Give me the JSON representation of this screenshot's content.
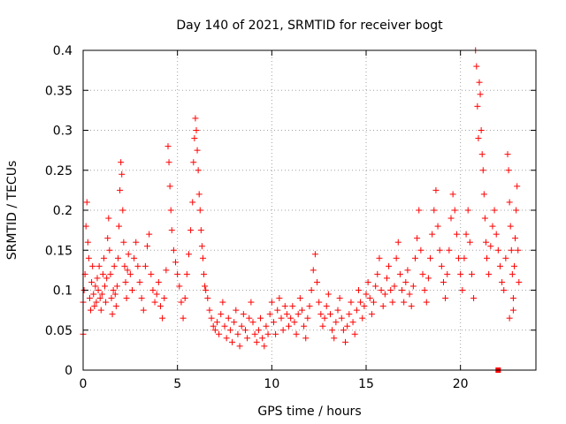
{
  "chart_data": {
    "type": "scatter",
    "title": "Day 140 of 2021, SRMTID for receiver bogt",
    "xlabel": "GPS time / hours",
    "ylabel": "SRMTID / TECUs",
    "xlim": [
      0,
      24
    ],
    "ylim": [
      0,
      0.4
    ],
    "xticks": [
      0,
      5,
      10,
      15,
      20
    ],
    "xtick_labels": [
      "0",
      "5",
      "10",
      "15",
      "20"
    ],
    "yticks": [
      0,
      0.05,
      0.1,
      0.15,
      0.2,
      0.25,
      0.3,
      0.35,
      0.4
    ],
    "ytick_labels": [
      "0",
      "0.05",
      "0.1",
      "0.15",
      "0.2",
      "0.25",
      "0.3",
      "0.35",
      "0.4"
    ],
    "grid": true,
    "series": [
      {
        "name": "SRMTID",
        "marker": "plus",
        "color": "#ff0000",
        "points": [
          [
            0.0,
            0.085
          ],
          [
            0.0,
            0.045
          ],
          [
            0.05,
            0.1
          ],
          [
            0.1,
            0.12
          ],
          [
            0.15,
            0.18
          ],
          [
            0.2,
            0.21
          ],
          [
            0.25,
            0.16
          ],
          [
            0.3,
            0.14
          ],
          [
            0.35,
            0.09
          ],
          [
            0.4,
            0.075
          ],
          [
            0.45,
            0.11
          ],
          [
            0.5,
            0.13
          ],
          [
            0.55,
            0.095
          ],
          [
            0.6,
            0.08
          ],
          [
            0.65,
            0.105
          ],
          [
            0.7,
            0.085
          ],
          [
            0.75,
            0.115
          ],
          [
            0.8,
            0.1
          ],
          [
            0.85,
            0.13
          ],
          [
            0.9,
            0.09
          ],
          [
            0.95,
            0.075
          ],
          [
            1.0,
            0.095
          ],
          [
            1.05,
            0.12
          ],
          [
            1.1,
            0.14
          ],
          [
            1.15,
            0.105
          ],
          [
            1.2,
            0.085
          ],
          [
            1.25,
            0.115
          ],
          [
            1.3,
            0.165
          ],
          [
            1.35,
            0.19
          ],
          [
            1.4,
            0.15
          ],
          [
            1.45,
            0.12
          ],
          [
            1.5,
            0.09
          ],
          [
            1.55,
            0.07
          ],
          [
            1.6,
            0.1
          ],
          [
            1.65,
            0.13
          ],
          [
            1.7,
            0.095
          ],
          [
            1.75,
            0.08
          ],
          [
            1.8,
            0.105
          ],
          [
            1.85,
            0.14
          ],
          [
            1.9,
            0.18
          ],
          [
            1.95,
            0.225
          ],
          [
            2.0,
            0.26
          ],
          [
            2.05,
            0.245
          ],
          [
            2.1,
            0.2
          ],
          [
            2.15,
            0.16
          ],
          [
            2.2,
            0.13
          ],
          [
            2.25,
            0.11
          ],
          [
            2.3,
            0.09
          ],
          [
            2.35,
            0.125
          ],
          [
            2.4,
            0.145
          ],
          [
            2.5,
            0.12
          ],
          [
            2.6,
            0.1
          ],
          [
            2.7,
            0.14
          ],
          [
            2.8,
            0.16
          ],
          [
            2.9,
            0.13
          ],
          [
            3.0,
            0.11
          ],
          [
            3.1,
            0.09
          ],
          [
            3.2,
            0.075
          ],
          [
            3.3,
            0.13
          ],
          [
            3.4,
            0.155
          ],
          [
            3.5,
            0.17
          ],
          [
            3.6,
            0.12
          ],
          [
            3.7,
            0.1
          ],
          [
            3.8,
            0.085
          ],
          [
            3.9,
            0.095
          ],
          [
            4.0,
            0.11
          ],
          [
            4.1,
            0.08
          ],
          [
            4.2,
            0.065
          ],
          [
            4.3,
            0.09
          ],
          [
            4.4,
            0.125
          ],
          [
            4.5,
            0.28
          ],
          [
            4.55,
            0.26
          ],
          [
            4.6,
            0.23
          ],
          [
            4.65,
            0.2
          ],
          [
            4.7,
            0.175
          ],
          [
            4.8,
            0.15
          ],
          [
            4.9,
            0.135
          ],
          [
            5.0,
            0.12
          ],
          [
            5.1,
            0.105
          ],
          [
            5.2,
            0.085
          ],
          [
            5.3,
            0.065
          ],
          [
            5.4,
            0.09
          ],
          [
            5.5,
            0.12
          ],
          [
            5.6,
            0.145
          ],
          [
            5.7,
            0.175
          ],
          [
            5.8,
            0.21
          ],
          [
            5.85,
            0.26
          ],
          [
            5.9,
            0.29
          ],
          [
            5.95,
            0.315
          ],
          [
            6.0,
            0.3
          ],
          [
            6.05,
            0.275
          ],
          [
            6.1,
            0.25
          ],
          [
            6.15,
            0.22
          ],
          [
            6.2,
            0.2
          ],
          [
            6.25,
            0.175
          ],
          [
            6.3,
            0.155
          ],
          [
            6.35,
            0.14
          ],
          [
            6.4,
            0.12
          ],
          [
            6.45,
            0.105
          ],
          [
            6.5,
            0.1
          ],
          [
            6.6,
            0.09
          ],
          [
            6.7,
            0.075
          ],
          [
            6.8,
            0.065
          ],
          [
            6.9,
            0.055
          ],
          [
            7.0,
            0.05
          ],
          [
            7.1,
            0.06
          ],
          [
            7.2,
            0.045
          ],
          [
            7.3,
            0.07
          ],
          [
            7.4,
            0.085
          ],
          [
            7.5,
            0.055
          ],
          [
            7.6,
            0.04
          ],
          [
            7.7,
            0.065
          ],
          [
            7.8,
            0.05
          ],
          [
            7.9,
            0.035
          ],
          [
            8.0,
            0.06
          ],
          [
            8.1,
            0.075
          ],
          [
            8.2,
            0.045
          ],
          [
            8.3,
            0.03
          ],
          [
            8.4,
            0.055
          ],
          [
            8.5,
            0.07
          ],
          [
            8.6,
            0.05
          ],
          [
            8.7,
            0.04
          ],
          [
            8.8,
            0.065
          ],
          [
            8.9,
            0.085
          ],
          [
            9.0,
            0.06
          ],
          [
            9.1,
            0.045
          ],
          [
            9.2,
            0.035
          ],
          [
            9.3,
            0.05
          ],
          [
            9.4,
            0.065
          ],
          [
            9.5,
            0.04
          ],
          [
            9.6,
            0.03
          ],
          [
            9.7,
            0.055
          ],
          [
            9.8,
            0.045
          ],
          [
            9.9,
            0.07
          ],
          [
            10.0,
            0.085
          ],
          [
            10.1,
            0.06
          ],
          [
            10.2,
            0.045
          ],
          [
            10.3,
            0.075
          ],
          [
            10.4,
            0.09
          ],
          [
            10.5,
            0.065
          ],
          [
            10.6,
            0.05
          ],
          [
            10.7,
            0.08
          ],
          [
            10.8,
            0.07
          ],
          [
            10.9,
            0.055
          ],
          [
            11.0,
            0.065
          ],
          [
            11.1,
            0.08
          ],
          [
            11.2,
            0.06
          ],
          [
            11.3,
            0.045
          ],
          [
            11.4,
            0.07
          ],
          [
            11.5,
            0.09
          ],
          [
            11.6,
            0.075
          ],
          [
            11.7,
            0.055
          ],
          [
            11.8,
            0.04
          ],
          [
            11.9,
            0.065
          ],
          [
            12.0,
            0.08
          ],
          [
            12.1,
            0.1
          ],
          [
            12.2,
            0.125
          ],
          [
            12.3,
            0.145
          ],
          [
            12.4,
            0.11
          ],
          [
            12.5,
            0.085
          ],
          [
            12.6,
            0.07
          ],
          [
            12.7,
            0.055
          ],
          [
            12.8,
            0.065
          ],
          [
            12.9,
            0.08
          ],
          [
            13.0,
            0.095
          ],
          [
            13.1,
            0.07
          ],
          [
            13.2,
            0.05
          ],
          [
            13.3,
            0.04
          ],
          [
            13.4,
            0.06
          ],
          [
            13.5,
            0.075
          ],
          [
            13.6,
            0.09
          ],
          [
            13.7,
            0.065
          ],
          [
            13.8,
            0.05
          ],
          [
            13.9,
            0.035
          ],
          [
            14.0,
            0.055
          ],
          [
            14.1,
            0.07
          ],
          [
            14.2,
            0.085
          ],
          [
            14.3,
            0.06
          ],
          [
            14.4,
            0.045
          ],
          [
            14.5,
            0.075
          ],
          [
            14.6,
            0.1
          ],
          [
            14.7,
            0.085
          ],
          [
            14.8,
            0.065
          ],
          [
            14.9,
            0.08
          ],
          [
            15.0,
            0.095
          ],
          [
            15.1,
            0.11
          ],
          [
            15.2,
            0.09
          ],
          [
            15.3,
            0.07
          ],
          [
            15.4,
            0.085
          ],
          [
            15.5,
            0.105
          ],
          [
            15.6,
            0.12
          ],
          [
            15.7,
            0.14
          ],
          [
            15.8,
            0.1
          ],
          [
            15.9,
            0.08
          ],
          [
            16.0,
            0.095
          ],
          [
            16.1,
            0.115
          ],
          [
            16.2,
            0.13
          ],
          [
            16.3,
            0.1
          ],
          [
            16.4,
            0.085
          ],
          [
            16.5,
            0.105
          ],
          [
            16.6,
            0.14
          ],
          [
            16.7,
            0.16
          ],
          [
            16.8,
            0.12
          ],
          [
            16.9,
            0.1
          ],
          [
            17.0,
            0.085
          ],
          [
            17.1,
            0.11
          ],
          [
            17.2,
            0.125
          ],
          [
            17.3,
            0.095
          ],
          [
            17.4,
            0.08
          ],
          [
            17.5,
            0.105
          ],
          [
            17.6,
            0.14
          ],
          [
            17.7,
            0.165
          ],
          [
            17.8,
            0.2
          ],
          [
            17.9,
            0.15
          ],
          [
            18.0,
            0.12
          ],
          [
            18.1,
            0.1
          ],
          [
            18.2,
            0.085
          ],
          [
            18.3,
            0.115
          ],
          [
            18.4,
            0.14
          ],
          [
            18.5,
            0.17
          ],
          [
            18.6,
            0.2
          ],
          [
            18.7,
            0.225
          ],
          [
            18.8,
            0.18
          ],
          [
            18.9,
            0.15
          ],
          [
            19.0,
            0.13
          ],
          [
            19.1,
            0.11
          ],
          [
            19.2,
            0.09
          ],
          [
            19.3,
            0.12
          ],
          [
            19.4,
            0.15
          ],
          [
            19.5,
            0.19
          ],
          [
            19.6,
            0.22
          ],
          [
            19.7,
            0.2
          ],
          [
            19.8,
            0.17
          ],
          [
            19.9,
            0.14
          ],
          [
            20.0,
            0.12
          ],
          [
            20.1,
            0.1
          ],
          [
            20.2,
            0.14
          ],
          [
            20.3,
            0.17
          ],
          [
            20.4,
            0.2
          ],
          [
            20.5,
            0.16
          ],
          [
            20.6,
            0.12
          ],
          [
            20.7,
            0.09
          ],
          [
            20.8,
            0.4
          ],
          [
            20.85,
            0.38
          ],
          [
            20.9,
            0.33
          ],
          [
            20.95,
            0.29
          ],
          [
            21.0,
            0.36
          ],
          [
            21.05,
            0.345
          ],
          [
            21.1,
            0.3
          ],
          [
            21.15,
            0.27
          ],
          [
            21.2,
            0.25
          ],
          [
            21.25,
            0.22
          ],
          [
            21.3,
            0.19
          ],
          [
            21.35,
            0.16
          ],
          [
            21.4,
            0.14
          ],
          [
            21.5,
            0.12
          ],
          [
            21.6,
            0.155
          ],
          [
            21.7,
            0.18
          ],
          [
            21.8,
            0.2
          ],
          [
            21.9,
            0.17
          ],
          [
            22.0,
            0.15
          ],
          [
            22.1,
            0.13
          ],
          [
            22.2,
            0.11
          ],
          [
            22.3,
            0.1
          ],
          [
            22.4,
            0.14
          ],
          [
            22.5,
            0.27
          ],
          [
            22.55,
            0.25
          ],
          [
            22.6,
            0.21
          ],
          [
            22.65,
            0.18
          ],
          [
            22.7,
            0.15
          ],
          [
            22.75,
            0.12
          ],
          [
            22.8,
            0.09
          ],
          [
            22.85,
            0.13
          ],
          [
            22.9,
            0.165
          ],
          [
            22.95,
            0.2
          ],
          [
            23.0,
            0.23
          ],
          [
            23.05,
            0.15
          ],
          [
            23.1,
            0.11
          ],
          [
            22.6,
            0.065
          ],
          [
            22.8,
            0.075
          ]
        ]
      }
    ],
    "marker_square": {
      "x": 22.0,
      "y": 0.0
    }
  }
}
